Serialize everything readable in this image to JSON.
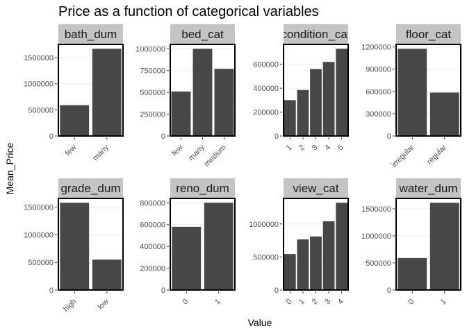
{
  "chart_data": {
    "type": "bar",
    "title": "Price as a function of categorical variables",
    "xlabel": "Value",
    "ylabel": "Mean_Price",
    "bar_color": "#474747",
    "strip_color": "#c4c4c4",
    "panels": [
      {
        "name": "bath_dum",
        "categories": [
          "few",
          "many"
        ],
        "values": [
          590000,
          1670000
        ],
        "yticks": [
          0,
          500000,
          1000000,
          1500000
        ],
        "ytick_labels": [
          "0",
          "500000",
          "1000000",
          "1500000"
        ]
      },
      {
        "name": "bed_cat",
        "categories": [
          "few",
          "many",
          "medium"
        ],
        "values": [
          510000,
          1000000,
          770000
        ],
        "yticks": [
          0,
          250000,
          500000,
          750000,
          1000000
        ],
        "ytick_labels": [
          "0",
          "250000",
          "500000",
          "750000",
          "1000000"
        ]
      },
      {
        "name": "condition_cat",
        "categories": [
          "1",
          "2",
          "3",
          "4",
          "5"
        ],
        "values": [
          300000,
          385000,
          560000,
          620000,
          730000
        ],
        "yticks": [
          0,
          200000,
          400000,
          600000
        ],
        "ytick_labels": [
          "0",
          "200000",
          "400000",
          "600000"
        ]
      },
      {
        "name": "floor_cat",
        "categories": [
          "irregular",
          "regular"
        ],
        "values": [
          1175000,
          585000
        ],
        "yticks": [
          0,
          300000,
          600000,
          900000,
          1200000
        ],
        "ytick_labels": [
          "0",
          "300000",
          "600000",
          "900000",
          "1200000"
        ]
      },
      {
        "name": "grade_dum",
        "categories": [
          "high",
          "low"
        ],
        "values": [
          1580000,
          550000
        ],
        "yticks": [
          0,
          500000,
          1000000,
          1500000
        ],
        "ytick_labels": [
          "0",
          "500000",
          "1000000",
          "1500000"
        ]
      },
      {
        "name": "reno_dum",
        "categories": [
          "0",
          "1"
        ],
        "values": [
          580000,
          800000
        ],
        "yticks": [
          0,
          200000,
          400000,
          600000,
          800000
        ],
        "ytick_labels": [
          "0",
          "200000",
          "400000",
          "600000",
          "800000"
        ]
      },
      {
        "name": "view_cat",
        "categories": [
          "0",
          "1",
          "2",
          "3",
          "4"
        ],
        "values": [
          545000,
          765000,
          810000,
          1040000,
          1320000
        ],
        "yticks": [
          0,
          500000,
          1000000
        ],
        "ytick_labels": [
          "0",
          "500000",
          "1000000"
        ]
      },
      {
        "name": "water_dum",
        "categories": [
          "0",
          "1"
        ],
        "values": [
          590000,
          1610000
        ],
        "yticks": [
          0,
          500000,
          1000000,
          1500000
        ],
        "ytick_labels": [
          "0",
          "500000",
          "1000000",
          "1500000"
        ]
      }
    ]
  }
}
